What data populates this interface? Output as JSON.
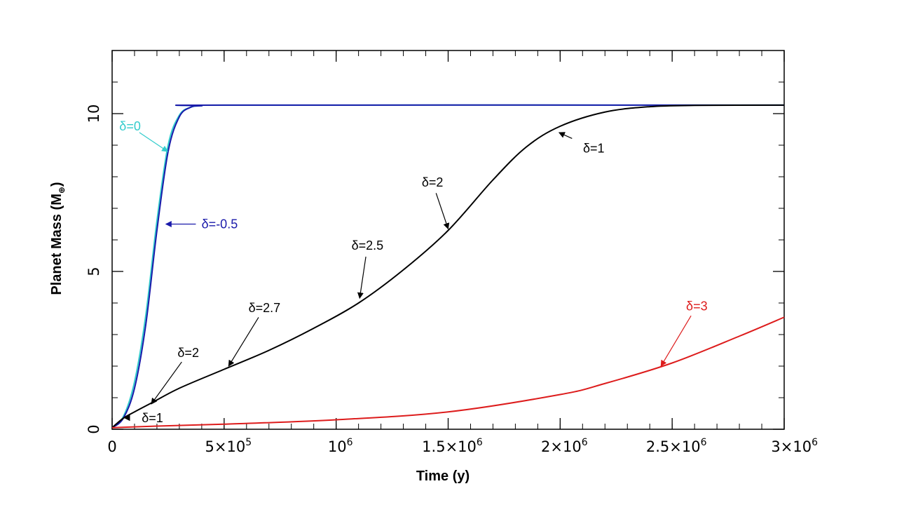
{
  "chart_data": {
    "type": "line",
    "title": "",
    "xlabel": "Time (y)",
    "ylabel": "Planet Mass (M",
    "ylabel_sub": "⊕",
    "ylabel_close": ")",
    "xlim": [
      0,
      3000000
    ],
    "ylim": [
      0,
      12
    ],
    "x_ticks": [
      {
        "value": 0,
        "label": "0"
      },
      {
        "value": 500000,
        "label": "5×10",
        "exp": "5"
      },
      {
        "value": 1000000,
        "label": "10",
        "exp": "6"
      },
      {
        "value": 1500000,
        "label": "1.5×10",
        "exp": "6"
      },
      {
        "value": 2000000,
        "label": "2×10",
        "exp": "6"
      },
      {
        "value": 2500000,
        "label": "2.5×10",
        "exp": "6"
      },
      {
        "value": 3000000,
        "label": "3×10",
        "exp": "6"
      }
    ],
    "y_ticks": [
      {
        "value": 0,
        "label": "0"
      },
      {
        "value": 5,
        "label": "5"
      },
      {
        "value": 10,
        "label": "10"
      }
    ],
    "series": [
      {
        "name": "δ=0",
        "color": "#33cccc",
        "points": [
          [
            0,
            0.05
          ],
          [
            50000,
            0.4
          ],
          [
            100000,
            1.5
          ],
          [
            150000,
            3.6
          ],
          [
            200000,
            6.6
          ],
          [
            250000,
            9.0
          ],
          [
            300000,
            9.95
          ],
          [
            350000,
            10.2
          ],
          [
            400000,
            10.25
          ],
          [
            500000,
            10.27
          ],
          [
            3000000,
            10.27
          ]
        ]
      },
      {
        "name": "δ=-0.5",
        "color": "#1a1aaa",
        "points": [
          [
            0,
            0.05
          ],
          [
            50000,
            0.35
          ],
          [
            100000,
            1.3
          ],
          [
            150000,
            3.3
          ],
          [
            200000,
            6.3
          ],
          [
            250000,
            8.8
          ],
          [
            300000,
            9.9
          ],
          [
            350000,
            10.2
          ],
          [
            400000,
            10.25
          ],
          [
            500000,
            10.27
          ],
          [
            3000000,
            10.27
          ]
        ]
      },
      {
        "name": "δ=1/2/2.7/2.5/2/1",
        "color": "#000000",
        "points": [
          [
            0,
            0.05
          ],
          [
            50000,
            0.35
          ],
          [
            100000,
            0.55
          ],
          [
            180000,
            0.85
          ],
          [
            300000,
            1.3
          ],
          [
            500000,
            1.9
          ],
          [
            700000,
            2.5
          ],
          [
            900000,
            3.2
          ],
          [
            1100000,
            4.0
          ],
          [
            1300000,
            5.05
          ],
          [
            1500000,
            6.3
          ],
          [
            1700000,
            7.9
          ],
          [
            1850000,
            8.95
          ],
          [
            2000000,
            9.6
          ],
          [
            2200000,
            10.05
          ],
          [
            2400000,
            10.22
          ],
          [
            2600000,
            10.26
          ],
          [
            3000000,
            10.27
          ]
        ]
      },
      {
        "name": "δ=3",
        "color": "#dd1c1c",
        "points": [
          [
            0,
            0.05
          ],
          [
            200000,
            0.1
          ],
          [
            500000,
            0.16
          ],
          [
            1000000,
            0.3
          ],
          [
            1500000,
            0.55
          ],
          [
            2000000,
            1.1
          ],
          [
            2200000,
            1.45
          ],
          [
            2500000,
            2.1
          ],
          [
            2800000,
            2.95
          ],
          [
            3000000,
            3.55
          ]
        ]
      }
    ],
    "annotations": [
      {
        "text": "δ=0",
        "color": "#33cccc",
        "tx": 80000,
        "ty": 9.6,
        "ax": 248000,
        "ay": 8.8
      },
      {
        "text": "δ=-0.5",
        "color": "#1a1aaa",
        "tx": 480000,
        "ty": 6.5,
        "ax": 240000,
        "ay": 6.5
      },
      {
        "text": "δ=1",
        "color": "#000000",
        "tx": 180000,
        "ty": 0.36,
        "ax": 55000,
        "ay": 0.36
      },
      {
        "text": "δ=2",
        "color": "#000000",
        "tx": 340000,
        "ty": 2.42,
        "ax": 175000,
        "ay": 0.8
      },
      {
        "text": "δ=2.7",
        "color": "#000000",
        "tx": 680000,
        "ty": 3.85,
        "ax": 520000,
        "ay": 2.0
      },
      {
        "text": "δ=2.5",
        "color": "#000000",
        "tx": 1140000,
        "ty": 5.82,
        "ax": 1105000,
        "ay": 4.15
      },
      {
        "text": "δ=2",
        "color": "#000000",
        "tx": 1430000,
        "ty": 7.82,
        "ax": 1500000,
        "ay": 6.35
      },
      {
        "text": "δ=1",
        "color": "#000000",
        "tx": 2150000,
        "ty": 8.9,
        "ax": 1995000,
        "ay": 9.4
      },
      {
        "text": "δ=3",
        "color": "#dd1c1c",
        "tx": 2610000,
        "ty": 3.9,
        "ax": 2450000,
        "ay": 2.0
      }
    ]
  }
}
